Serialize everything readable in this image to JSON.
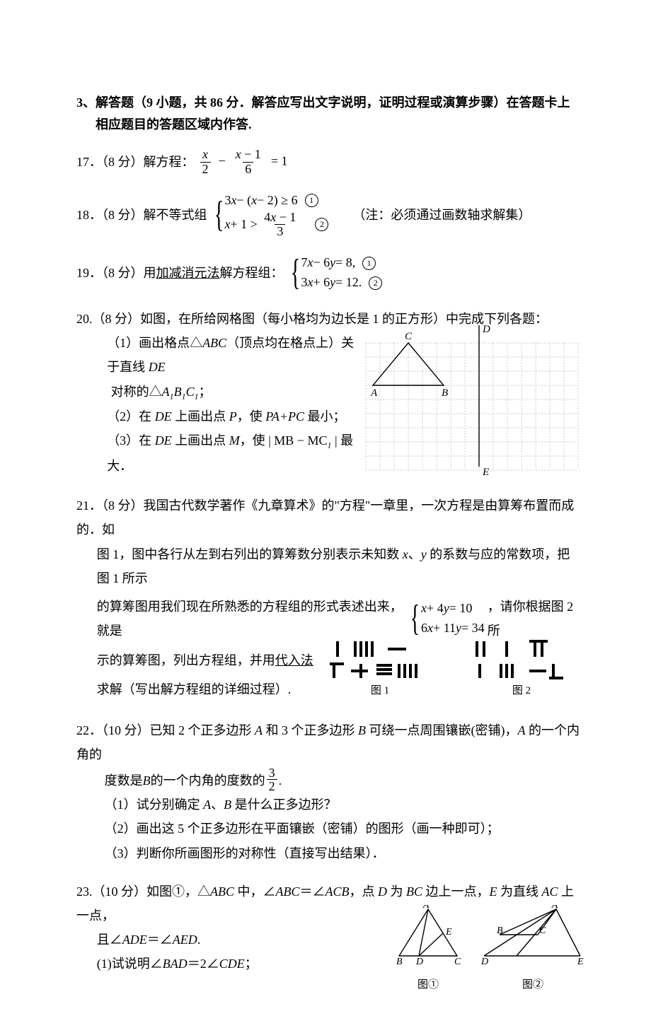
{
  "section_header": "3、解答题（9 小题，共 86 分．解答应写出文字说明，证明过程或演算步骤）在答题卡上相应题目的答题区域内作答.",
  "p17": {
    "label": "17．（8 分）解方程："
  },
  "p18": {
    "label": "18．（8 分）解不等式组",
    "note": "（注：必须通过画数轴求解集）"
  },
  "p19": {
    "label_pre": "19．（8 分）用",
    "label_u": "加减消元法",
    "label_post": "解方程组："
  },
  "p20": {
    "head": "20.（8 分）如图，在所给网格图（每小格均为边长是 1 的正方形）中完成下列各题：",
    "s1a": "（1）画出格点△",
    "s1b": "（顶点均在格点上）关于直线 ",
    "s1c": "DE",
    "s1d": "对称的△",
    "s2a": "（2）在 ",
    "s2de": "DE",
    "s2b": " 上画出点 ",
    "s2p": "P",
    "s2c": "，使 ",
    "s2papc": "PA+PC",
    "s2d": " 最小；",
    "s3a": "（3）在 ",
    "s3de": "DE",
    "s3b": " 上画出点 ",
    "s3m": "M",
    "s3c": "，使 ",
    "s3abs": "| MB − MC",
    "s3d": " | 最大．",
    "labels": {
      "A": "A",
      "B": "B",
      "C": "C",
      "D": "D",
      "E": "E"
    }
  },
  "p21": {
    "line1a": "21．（8 分）我国古代数学著作《九章算术》的\"方程\"一章里，一次方程是由算筹布置而成的．如",
    "line1b": "图 1，图中各行从左到右列出的算筹数分别表示未知数 ",
    "line1x": "x",
    "line1y": "y",
    "line1c": " 的系数与应的常数项，把图 1 所示",
    "line2a": "的算筹图用我们现在所熟悉的方程组的形式表述出来，就是",
    "line2b": "，请你根据图 2 所",
    "line3a": "示的算筹图，列出方程组，并用",
    "line3u": "代入法",
    "line4": "求解（写出解方程组的详细过程）.",
    "cap1": "图 1",
    "cap2": "图 2"
  },
  "p22": {
    "line1a": "22．（10 分）已知 2 个正多边形 ",
    "A": "A",
    "line1b": " 和 3 个正多边形 ",
    "B": "B",
    "line1c": " 可绕一点周围镶嵌(密铺)，",
    "line1d": " 的一个内角的",
    "line2a": "度数是 ",
    "line2b": " 的一个内角的度数的",
    "s1": "（1）试分别确定 ",
    "s1a": "A",
    "s1b": "、",
    "s1B": "B",
    "s1c": " 是什么正多边形？",
    "s2": "（2）画出这 5 个正多边形在平面镶嵌（密铺）的图形（画一种即可）；",
    "s3": "（3）判断你所画图形的对称性（直接写出结果）．"
  },
  "p23": {
    "line1a": "23.（10 分）如图①，△",
    "abc": "ABC",
    "line1b": " 中，∠",
    "abc2": "ABC",
    "line1c": "＝∠",
    "acb": "ACB",
    "line1d": "，点 ",
    "D": "D",
    "line1e": " 为 ",
    "bc": "BC",
    "line1f": " 边上一点，",
    "E": "E",
    "line1g": " 为直线 ",
    "ac": "AC",
    "line1h": " 上一点，",
    "line2a": "且∠",
    "ade": "ADE",
    "line2b": "＝∠",
    "aed": "AED",
    "line2c": ".",
    "s1a": "(1)试说明∠",
    "bad": "BAD",
    "s1b": "＝2∠",
    "cde": "CDE",
    "s1c": "；",
    "cap1": "图①",
    "cap2": "图②",
    "labels": {
      "A": "A",
      "B": "B",
      "C": "C",
      "D": "D",
      "E": "E"
    }
  },
  "style": {
    "grid_color": "#b8b8b8",
    "line_color": "#000000",
    "label_font": "italic 15px Times New Roman"
  }
}
